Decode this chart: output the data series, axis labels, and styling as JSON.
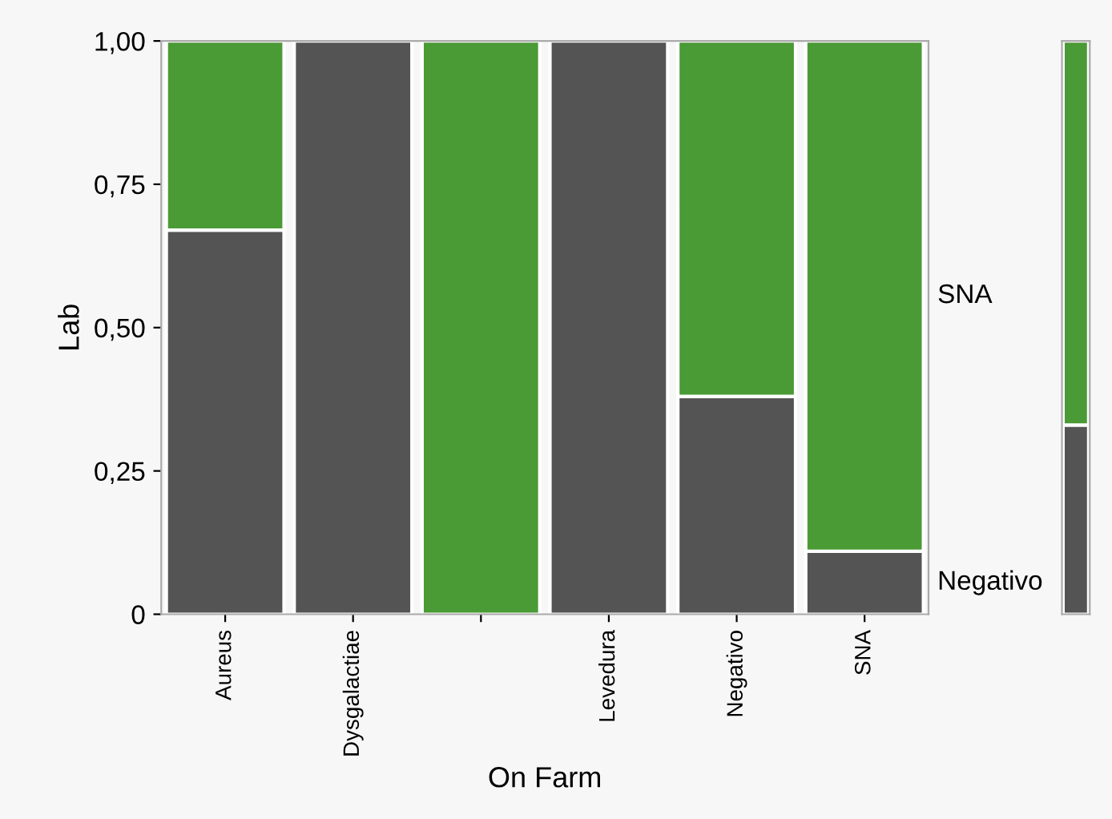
{
  "chart_data": [
    {
      "type": "bar",
      "stacked": true,
      "xlabel": "On Farm",
      "ylabel": "Lab",
      "categories": [
        "Aureus",
        "Dysgalactiae",
        null,
        "Levedura",
        "Negativo",
        "SNA"
      ],
      "series": [
        {
          "name": "Negativo",
          "color": "#545454",
          "values": [
            0.67,
            1,
            0,
            1,
            0.38,
            0.11
          ]
        },
        {
          "name": "SNA",
          "color": "#4a9a35",
          "values": [
            0.33,
            0,
            1,
            0,
            0.62,
            0.89
          ]
        }
      ],
      "ylim": [
        0,
        1
      ],
      "yticks": [
        {
          "value": 0,
          "label": "0"
        },
        {
          "value": 0.25,
          "label": "0,25"
        },
        {
          "value": 0.5,
          "label": "0,50"
        },
        {
          "value": 0.75,
          "label": "0,75"
        },
        {
          "value": 1,
          "label": "1,00"
        }
      ],
      "grid": false,
      "legend": "right"
    },
    {
      "type": "bar",
      "stacked": true,
      "categories": [
        null
      ],
      "series": [
        {
          "color": "#545454",
          "values": [
            0.33
          ]
        },
        {
          "color": "#4a9a35",
          "values": [
            0.67
          ]
        }
      ],
      "ylim": [
        0,
        1
      ],
      "tick_labels": false,
      "grid": false
    }
  ]
}
